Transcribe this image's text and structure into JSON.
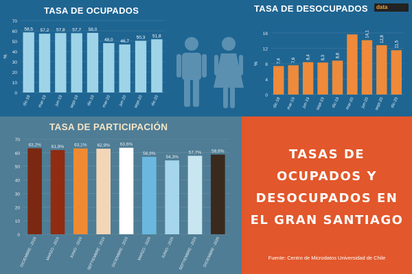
{
  "titles": {
    "ocupados": "TASA DE OCUPADOS",
    "desocupados": "TASA DE DESOCUPADOS",
    "participacion": "TASA DE PARTICIPACIÓN"
  },
  "main_title_lines": [
    "TASAS DE",
    "OCUPADOS Y",
    "DESOCUPADOS EN",
    "EL GRAN SANTIAGO"
  ],
  "source": "Fuente: Centro de Microdatos Universidad de Chile",
  "logo": {
    "text": "data",
    "subtext": ""
  },
  "colors": {
    "ocupados_bar": "#9fd3e8",
    "desocupados_bar": "#ee8a3a",
    "title_box": "#e2572b"
  },
  "chart_data": [
    {
      "type": "bar",
      "title": "TASA DE OCUPADOS",
      "ylabel": "%",
      "ylim": [
        0,
        70
      ],
      "yticks": [
        0,
        10,
        20,
        30,
        40,
        50,
        60,
        70
      ],
      "categories": [
        "dic-18",
        "mar-19",
        "jun-19",
        "sept-19",
        "dic-19",
        "mar-20",
        "jun-20",
        "sept-20",
        "dic-20"
      ],
      "values": [
        58.5,
        57.2,
        57.8,
        57.7,
        58.0,
        48.0,
        46.7,
        50.3,
        51.8
      ],
      "data_labels": [
        "58,5",
        "57,2",
        "57,8",
        "57,7",
        "58,0",
        "48,0",
        "46,7",
        "50,3",
        "51,8"
      ]
    },
    {
      "type": "bar",
      "title": "TASA DE DESOCUPADOS",
      "ylabel": "%",
      "ylim": [
        0,
        16
      ],
      "yticks": [
        0,
        4,
        8,
        12,
        16
      ],
      "categories": [
        "dic-18",
        "mar-19",
        "jun-19",
        "sept-19",
        "dic-19",
        "mar-20",
        "jun-20",
        "sept-20",
        "dic-20"
      ],
      "values": [
        7.4,
        7.6,
        8.4,
        8.3,
        8.8,
        15.6,
        14.1,
        12.8,
        11.5
      ],
      "data_labels": [
        "7,4",
        "7,6",
        "8,4",
        "8,3",
        "8,8",
        "",
        "14,1",
        "12,8",
        "11,5"
      ]
    },
    {
      "type": "bar",
      "title": "TASA DE PARTICIPACIÓN",
      "ylim": [
        0,
        70
      ],
      "yticks": [
        0,
        10,
        20,
        30,
        40,
        50,
        60,
        70
      ],
      "categories": [
        "DICIEMBRE - 2018",
        "MARZO - 2019",
        "JUNIO - 2019",
        "SEPTIEMBRE - 2019",
        "DICIEMBRE - 2019",
        "MARZO - 2020",
        "JUNIO - 2020",
        "SEPTIEMBRE - 2020",
        "DICIEMBRE - 2020"
      ],
      "values": [
        63.2,
        61.9,
        63.1,
        62.9,
        63.6,
        56.9,
        54.3,
        57.7,
        58.6
      ],
      "data_labels": [
        "63,2%",
        "61,9%",
        "63,1%",
        "62,9%",
        "63,6%",
        "56,9%",
        "54,3%",
        "57,7%",
        "58,6%"
      ],
      "colors": [
        "#7a2812",
        "#8f2c12",
        "#ef8a33",
        "#f3d6b6",
        "#ffffff",
        "#6ab8df",
        "#a5d6ec",
        "#c8e6ef",
        "#3a2a1e"
      ]
    }
  ]
}
